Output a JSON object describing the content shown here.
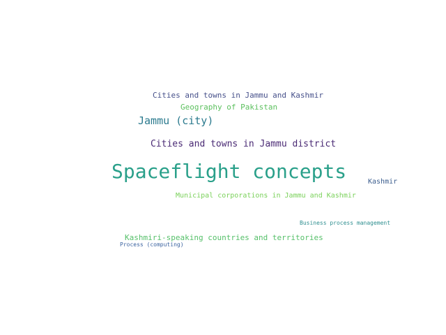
{
  "words": [
    {
      "text": "Cities and towns in Jammu and Kashmir",
      "color": "#46508a"
    },
    {
      "text": "Geography of Pakistan",
      "color": "#5cc05e"
    },
    {
      "text": "Jammu (city)",
      "color": "#2b7a8e"
    },
    {
      "text": "Cities and towns in Jammu district",
      "color": "#4a2a74"
    },
    {
      "text": "Spaceflight concepts",
      "color": "#2aa08a"
    },
    {
      "text": "Kashmir",
      "color": "#3b5d8e"
    },
    {
      "text": "Municipal corporations in Jammu and Kashmir",
      "color": "#7ad15a"
    },
    {
      "text": "Business process management",
      "color": "#2f8f90"
    },
    {
      "text": "Kashmiri-speaking countries and territories",
      "color": "#56c06a"
    },
    {
      "text": "Process (computing)",
      "color": "#3b63a0"
    }
  ]
}
